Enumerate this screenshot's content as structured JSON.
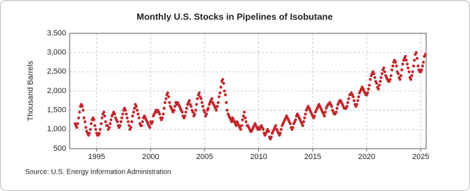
{
  "chart_data": {
    "type": "scatter",
    "title": "Monthly U.S. Stocks in Pipelines of Isobutane",
    "y_label": "Thousand Barrels",
    "source": "Source: U.S. Energy Information Administration",
    "color": "#c0282d",
    "grid": true,
    "xlim": [
      1992.5,
      2025.5
    ],
    "ylim": [
      500,
      3500
    ],
    "xticks": [
      1995,
      2000,
      2005,
      2010,
      2015,
      2020,
      2025
    ],
    "yticks": [
      500,
      {
        "value": 1000,
        "label": "1,000"
      },
      {
        "value": 1500,
        "label": "1,500"
      },
      {
        "value": 2000,
        "label": "2,000"
      },
      {
        "value": 2500,
        "label": "2,500"
      },
      {
        "value": 3000,
        "label": "3,000"
      },
      {
        "value": 3500,
        "label": "3,500"
      }
    ],
    "x": [
      1993.0,
      1993.08,
      1993.17,
      1993.25,
      1993.33,
      1993.42,
      1993.5,
      1993.58,
      1993.67,
      1993.75,
      1993.83,
      1993.92,
      1994.0,
      1994.08,
      1994.17,
      1994.25,
      1994.33,
      1994.42,
      1994.5,
      1994.58,
      1994.67,
      1994.75,
      1994.83,
      1994.92,
      1995.0,
      1995.08,
      1995.17,
      1995.25,
      1995.33,
      1995.42,
      1995.5,
      1995.58,
      1995.67,
      1995.75,
      1995.83,
      1995.92,
      1996.0,
      1996.08,
      1996.17,
      1996.25,
      1996.33,
      1996.42,
      1996.5,
      1996.58,
      1996.67,
      1996.75,
      1996.83,
      1996.92,
      1997.0,
      1997.08,
      1997.17,
      1997.25,
      1997.33,
      1997.42,
      1997.5,
      1997.58,
      1997.67,
      1997.75,
      1997.83,
      1997.92,
      1998.0,
      1998.08,
      1998.17,
      1998.25,
      1998.33,
      1998.42,
      1998.5,
      1998.58,
      1998.67,
      1998.75,
      1998.83,
      1998.92,
      1999.0,
      1999.08,
      1999.17,
      1999.25,
      1999.33,
      1999.42,
      1999.5,
      1999.58,
      1999.67,
      1999.75,
      1999.83,
      1999.92,
      2000.0,
      2000.08,
      2000.17,
      2000.25,
      2000.33,
      2000.42,
      2000.5,
      2000.58,
      2000.67,
      2000.75,
      2000.83,
      2000.92,
      2001.0,
      2001.08,
      2001.17,
      2001.25,
      2001.33,
      2001.42,
      2001.5,
      2001.58,
      2001.67,
      2001.75,
      2001.83,
      2001.92,
      2002.0,
      2002.08,
      2002.17,
      2002.25,
      2002.33,
      2002.42,
      2002.5,
      2002.58,
      2002.67,
      2002.75,
      2002.83,
      2002.92,
      2003.0,
      2003.08,
      2003.17,
      2003.25,
      2003.33,
      2003.42,
      2003.5,
      2003.58,
      2003.67,
      2003.75,
      2003.83,
      2003.92,
      2004.0,
      2004.08,
      2004.17,
      2004.25,
      2004.33,
      2004.42,
      2004.5,
      2004.58,
      2004.67,
      2004.75,
      2004.83,
      2004.92,
      2005.0,
      2005.08,
      2005.17,
      2005.25,
      2005.33,
      2005.42,
      2005.5,
      2005.58,
      2005.67,
      2005.75,
      2005.83,
      2005.92,
      2006.0,
      2006.08,
      2006.17,
      2006.25,
      2006.33,
      2006.42,
      2006.5,
      2006.58,
      2006.67,
      2006.75,
      2006.83,
      2006.92,
      2007.0,
      2007.08,
      2007.17,
      2007.25,
      2007.33,
      2007.42,
      2007.5,
      2007.58,
      2007.67,
      2007.75,
      2007.83,
      2007.92,
      2008.0,
      2008.08,
      2008.17,
      2008.25,
      2008.33,
      2008.42,
      2008.5,
      2008.58,
      2008.67,
      2008.75,
      2008.83,
      2008.92,
      2009.0,
      2009.08,
      2009.17,
      2009.25,
      2009.33,
      2009.42,
      2009.5,
      2009.58,
      2009.67,
      2009.75,
      2009.83,
      2009.92,
      2010.0,
      2010.08,
      2010.17,
      2010.25,
      2010.33,
      2010.42,
      2010.5,
      2010.58,
      2010.67,
      2010.75,
      2010.83,
      2010.92,
      2011.0,
      2011.08,
      2011.17,
      2011.25,
      2011.33,
      2011.42,
      2011.5,
      2011.58,
      2011.67,
      2011.75,
      2011.83,
      2011.92,
      2012.0,
      2012.08,
      2012.17,
      2012.25,
      2012.33,
      2012.42,
      2012.5,
      2012.58,
      2012.67,
      2012.75,
      2012.83,
      2012.92,
      2013.0,
      2013.08,
      2013.17,
      2013.25,
      2013.33,
      2013.42,
      2013.5,
      2013.58,
      2013.67,
      2013.75,
      2013.83,
      2013.92,
      2014.0,
      2014.08,
      2014.17,
      2014.25,
      2014.33,
      2014.42,
      2014.5,
      2014.58,
      2014.67,
      2014.75,
      2014.83,
      2014.92,
      2015.0,
      2015.08,
      2015.17,
      2015.25,
      2015.33,
      2015.42,
      2015.5,
      2015.58,
      2015.67,
      2015.75,
      2015.83,
      2015.92,
      2016.0,
      2016.08,
      2016.17,
      2016.25,
      2016.33,
      2016.42,
      2016.5,
      2016.58,
      2016.67,
      2016.75,
      2016.83,
      2016.92,
      2017.0,
      2017.08,
      2017.17,
      2017.25,
      2017.33,
      2017.42,
      2017.5,
      2017.58,
      2017.67,
      2017.75,
      2017.83,
      2017.92,
      2018.0,
      2018.08,
      2018.17,
      2018.25,
      2018.33,
      2018.42,
      2018.5,
      2018.58,
      2018.67,
      2018.75,
      2018.83,
      2018.92,
      2019.0,
      2019.08,
      2019.17,
      2019.25,
      2019.33,
      2019.42,
      2019.5,
      2019.58,
      2019.67,
      2019.75,
      2019.83,
      2019.92,
      2020.0,
      2020.08,
      2020.17,
      2020.25,
      2020.33,
      2020.42,
      2020.5,
      2020.58,
      2020.67,
      2020.75,
      2020.83,
      2020.92,
      2021.0,
      2021.08,
      2021.17,
      2021.25,
      2021.33,
      2021.42,
      2021.5,
      2021.58,
      2021.67,
      2021.75,
      2021.83,
      2021.92,
      2022.0,
      2022.08,
      2022.17,
      2022.25,
      2022.33,
      2022.42,
      2022.5,
      2022.58,
      2022.67,
      2022.75,
      2022.83,
      2022.92,
      2023.0,
      2023.08,
      2023.17,
      2023.25,
      2023.33,
      2023.42,
      2023.5,
      2023.58,
      2023.67,
      2023.75,
      2023.83,
      2023.92,
      2024.0,
      2024.08,
      2024.17,
      2024.25,
      2024.33,
      2024.42,
      2024.5,
      2024.58,
      2024.67,
      2024.75,
      2024.83,
      2024.92,
      2025.0,
      2025.08,
      2025.17,
      2025.25,
      2025.33,
      2025.42
    ],
    "values": [
      1150,
      1100,
      1050,
      1150,
      1300,
      1450,
      1600,
      1650,
      1600,
      1500,
      1300,
      1200,
      1050,
      950,
      900,
      850,
      900,
      1000,
      1150,
      1250,
      1300,
      1250,
      1100,
      1000,
      900,
      850,
      850,
      900,
      1000,
      1150,
      1300,
      1400,
      1450,
      1350,
      1200,
      1100,
      1100,
      1000,
      1050,
      1150,
      1250,
      1350,
      1400,
      1450,
      1400,
      1300,
      1250,
      1200,
      1100,
      1050,
      1100,
      1200,
      1300,
      1400,
      1500,
      1550,
      1500,
      1400,
      1300,
      1200,
      1100,
      1000,
      1050,
      1200,
      1350,
      1450,
      1550,
      1650,
      1600,
      1500,
      1400,
      1300,
      1150,
      1100,
      1100,
      1200,
      1300,
      1350,
      1300,
      1250,
      1200,
      1150,
      1100,
      1050,
      1200,
      1150,
      1200,
      1350,
      1400,
      1450,
      1500,
      1450,
      1500,
      1450,
      1400,
      1300,
      1250,
      1300,
      1400,
      1550,
      1700,
      1800,
      1900,
      1950,
      1850,
      1700,
      1600,
      1550,
      1500,
      1450,
      1500,
      1600,
      1700,
      1650,
      1700,
      1650,
      1600,
      1550,
      1500,
      1450,
      1350,
      1300,
      1350,
      1450,
      1550,
      1650,
      1700,
      1750,
      1650,
      1600,
      1500,
      1450,
      1350,
      1400,
      1500,
      1650,
      1800,
      1900,
      1950,
      1850,
      1800,
      1700,
      1600,
      1500,
      1450,
      1350,
      1400,
      1500,
      1550,
      1650,
      1700,
      1750,
      1800,
      1700,
      1650,
      1600,
      1550,
      1500,
      1600,
      1700,
      1850,
      1950,
      2100,
      2250,
      2300,
      2200,
      2000,
      1900,
      1700,
      1500,
      1400,
      1350,
      1300,
      1250,
      1200,
      1300,
      1250,
      1200,
      1150,
      1100,
      1200,
      1150,
      1100,
      1050,
      1000,
      1100,
      1250,
      1350,
      1450,
      1300,
      1200,
      1100,
      1100,
      1050,
      1000,
      950,
      950,
      1000,
      1050,
      1100,
      1150,
      1100,
      1050,
      1000,
      1050,
      1000,
      1050,
      1100,
      1050,
      1000,
      900,
      850,
      900,
      950,
      1000,
      950,
      800,
      750,
      800,
      900,
      950,
      1000,
      1050,
      1100,
      1000,
      950,
      900,
      850,
      900,
      1000,
      1100,
      1150,
      1200,
      1250,
      1300,
      1350,
      1300,
      1250,
      1200,
      1150,
      1050,
      1000,
      1050,
      1150,
      1200,
      1250,
      1350,
      1400,
      1350,
      1300,
      1250,
      1200,
      1150,
      1100,
      1200,
      1300,
      1400,
      1500,
      1550,
      1600,
      1550,
      1500,
      1450,
      1400,
      1350,
      1300,
      1350,
      1450,
      1500,
      1550,
      1600,
      1650,
      1600,
      1550,
      1500,
      1450,
      1400,
      1350,
      1450,
      1550,
      1600,
      1650,
      1650,
      1700,
      1650,
      1600,
      1500,
      1450,
      1400,
      1400,
      1450,
      1550,
      1650,
      1700,
      1750,
      1750,
      1700,
      1650,
      1600,
      1550,
      1550,
      1550,
      1600,
      1700,
      1800,
      1900,
      1900,
      1950,
      1900,
      1850,
      1750,
      1650,
      1600,
      1650,
      1750,
      1850,
      1950,
      2000,
      2050,
      2100,
      2050,
      2000,
      1950,
      1900,
      1900,
      1950,
      2050,
      2150,
      2300,
      2400,
      2450,
      2500,
      2450,
      2350,
      2250,
      2200,
      2100,
      2050,
      2150,
      2250,
      2350,
      2450,
      2550,
      2600,
      2500,
      2400,
      2350,
      2300,
      2250,
      2250,
      2300,
      2400,
      2550,
      2650,
      2750,
      2800,
      2750,
      2650,
      2500,
      2450,
      2350,
      2300,
      2400,
      2550,
      2700,
      2800,
      2850,
      2900,
      2800,
      2700,
      2600,
      2500,
      2350,
      2300,
      2400,
      2500,
      2650,
      2800,
      2950,
      3000,
      2850,
      2650,
      2550,
      2500,
      2500,
      2550,
      2650,
      2750,
      2900,
      2950
    ]
  }
}
